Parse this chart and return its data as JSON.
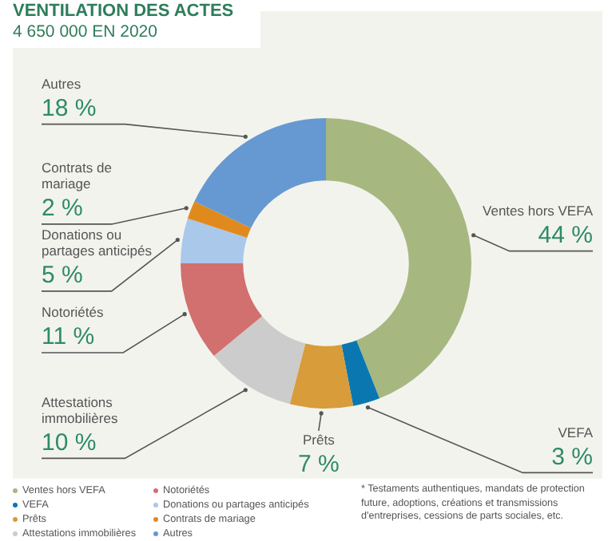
{
  "chart_data": {
    "type": "donut",
    "title": "VENTILATION DES ACTES",
    "subtitle": "4 650 000 EN 2020",
    "categories": [
      "Ventes hors VEFA",
      "VEFA",
      "Prêts",
      "Attestations immobilières",
      "Notoriétés",
      "Donations ou partages anticipés",
      "Contrats de mariage",
      "Autres"
    ],
    "values": [
      44,
      3,
      7,
      10,
      11,
      5,
      2,
      18
    ],
    "colors": [
      "#a6b880",
      "#0b77b1",
      "#d89c3a",
      "#cccccc",
      "#d1706e",
      "#a9c8ea",
      "#e08a1e",
      "#6699d1"
    ],
    "value_labels": [
      "44 %",
      "3 %",
      "7 %",
      "10 %",
      "11 %",
      "5 %",
      "2 %",
      "18 %"
    ],
    "legend": "bottom",
    "annotations": [
      "* Testaments authentiques, mandats de protection future, adoptions, créations et transmissions d'entreprises, cessions de parts sociales, etc."
    ]
  }
}
